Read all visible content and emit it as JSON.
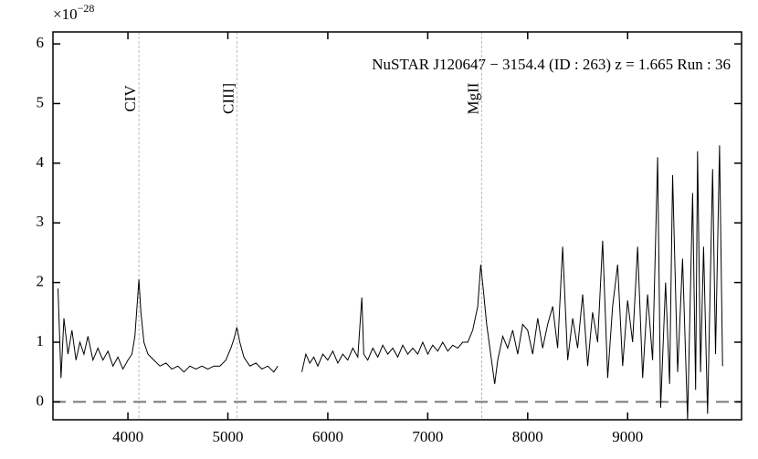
{
  "chart_data": {
    "type": "line",
    "title": "NuSTAR J120647 − 3154.4 (ID : 263)   z = 1.665   Run : 36",
    "offset_base": "×10",
    "offset_exponent": "−28",
    "x": [
      3300,
      3330,
      3360,
      3400,
      3440,
      3480,
      3520,
      3560,
      3600,
      3650,
      3700,
      3750,
      3800,
      3850,
      3900,
      3950,
      4000,
      4040,
      4070,
      4095,
      4110,
      4130,
      4160,
      4200,
      4260,
      4320,
      4380,
      4440,
      4500,
      4560,
      4620,
      4680,
      4740,
      4800,
      4860,
      4920,
      4980,
      5030,
      5060,
      5090,
      5120,
      5160,
      5220,
      5280,
      5340,
      5400,
      5460,
      5500,
      5600,
      5740,
      5780,
      5820,
      5860,
      5900,
      5950,
      6000,
      6050,
      6100,
      6150,
      6200,
      6250,
      6300,
      6340,
      6360,
      6400,
      6450,
      6500,
      6550,
      6600,
      6650,
      6700,
      6750,
      6800,
      6850,
      6900,
      6950,
      7000,
      7050,
      7100,
      7150,
      7200,
      7250,
      7300,
      7350,
      7400,
      7450,
      7500,
      7530,
      7555,
      7590,
      7630,
      7670,
      7700,
      7750,
      7800,
      7850,
      7900,
      7950,
      8000,
      8050,
      8100,
      8150,
      8200,
      8250,
      8300,
      8350,
      8400,
      8450,
      8500,
      8550,
      8600,
      8650,
      8700,
      8750,
      8800,
      8850,
      8900,
      8950,
      9000,
      9050,
      9100,
      9150,
      9200,
      9250,
      9300,
      9330,
      9380,
      9420,
      9450,
      9500,
      9550,
      9600,
      9650,
      9680,
      9700,
      9730,
      9760,
      9800,
      9850,
      9880,
      9920,
      9950
    ],
    "series": [
      {
        "color": "#000000",
        "values": [
          1.9,
          0.4,
          1.4,
          0.8,
          1.2,
          0.7,
          1.0,
          0.8,
          1.1,
          0.7,
          0.9,
          0.7,
          0.85,
          0.6,
          0.75,
          0.55,
          0.7,
          0.8,
          1.1,
          1.7,
          2.05,
          1.5,
          1.0,
          0.8,
          0.7,
          0.6,
          0.65,
          0.55,
          0.6,
          0.5,
          0.6,
          0.55,
          0.6,
          0.55,
          0.6,
          0.6,
          0.7,
          0.9,
          1.05,
          1.25,
          1.0,
          0.75,
          0.6,
          0.65,
          0.55,
          0.6,
          0.5,
          0.6,
          null,
          0.5,
          0.8,
          0.65,
          0.75,
          0.6,
          0.8,
          0.7,
          0.85,
          0.65,
          0.8,
          0.7,
          0.9,
          0.75,
          1.75,
          0.8,
          0.7,
          0.9,
          0.75,
          0.95,
          0.8,
          0.9,
          0.75,
          0.95,
          0.8,
          0.9,
          0.8,
          1.0,
          0.8,
          0.95,
          0.85,
          1.0,
          0.85,
          0.95,
          0.9,
          1.0,
          1.0,
          1.2,
          1.6,
          2.3,
          1.9,
          1.3,
          0.8,
          0.3,
          0.7,
          1.1,
          0.9,
          1.2,
          0.8,
          1.3,
          1.2,
          0.8,
          1.4,
          0.9,
          1.3,
          1.6,
          0.9,
          2.6,
          0.7,
          1.4,
          0.9,
          1.8,
          0.6,
          1.5,
          1.0,
          2.7,
          0.4,
          1.6,
          2.3,
          0.6,
          1.7,
          1.0,
          2.6,
          0.4,
          1.8,
          0.7,
          4.1,
          -0.1,
          2.0,
          0.3,
          3.8,
          0.5,
          2.4,
          -0.3,
          3.5,
          0.2,
          4.2,
          0.5,
          2.6,
          -0.2,
          3.9,
          0.8,
          4.3,
          0.6
        ]
      }
    ],
    "lines": [
      {
        "label": "CIV",
        "x": 4110
      },
      {
        "label": "CIII]",
        "x": 5090
      },
      {
        "label": "MgII",
        "x": 7540
      }
    ],
    "hline": 0,
    "xlim": [
      3250,
      10140
    ],
    "ylim": [
      -0.3,
      6.2
    ],
    "xticks": [
      4000,
      5000,
      6000,
      7000,
      8000,
      9000
    ],
    "yticks": [
      0,
      1,
      2,
      3,
      4,
      5,
      6
    ]
  }
}
